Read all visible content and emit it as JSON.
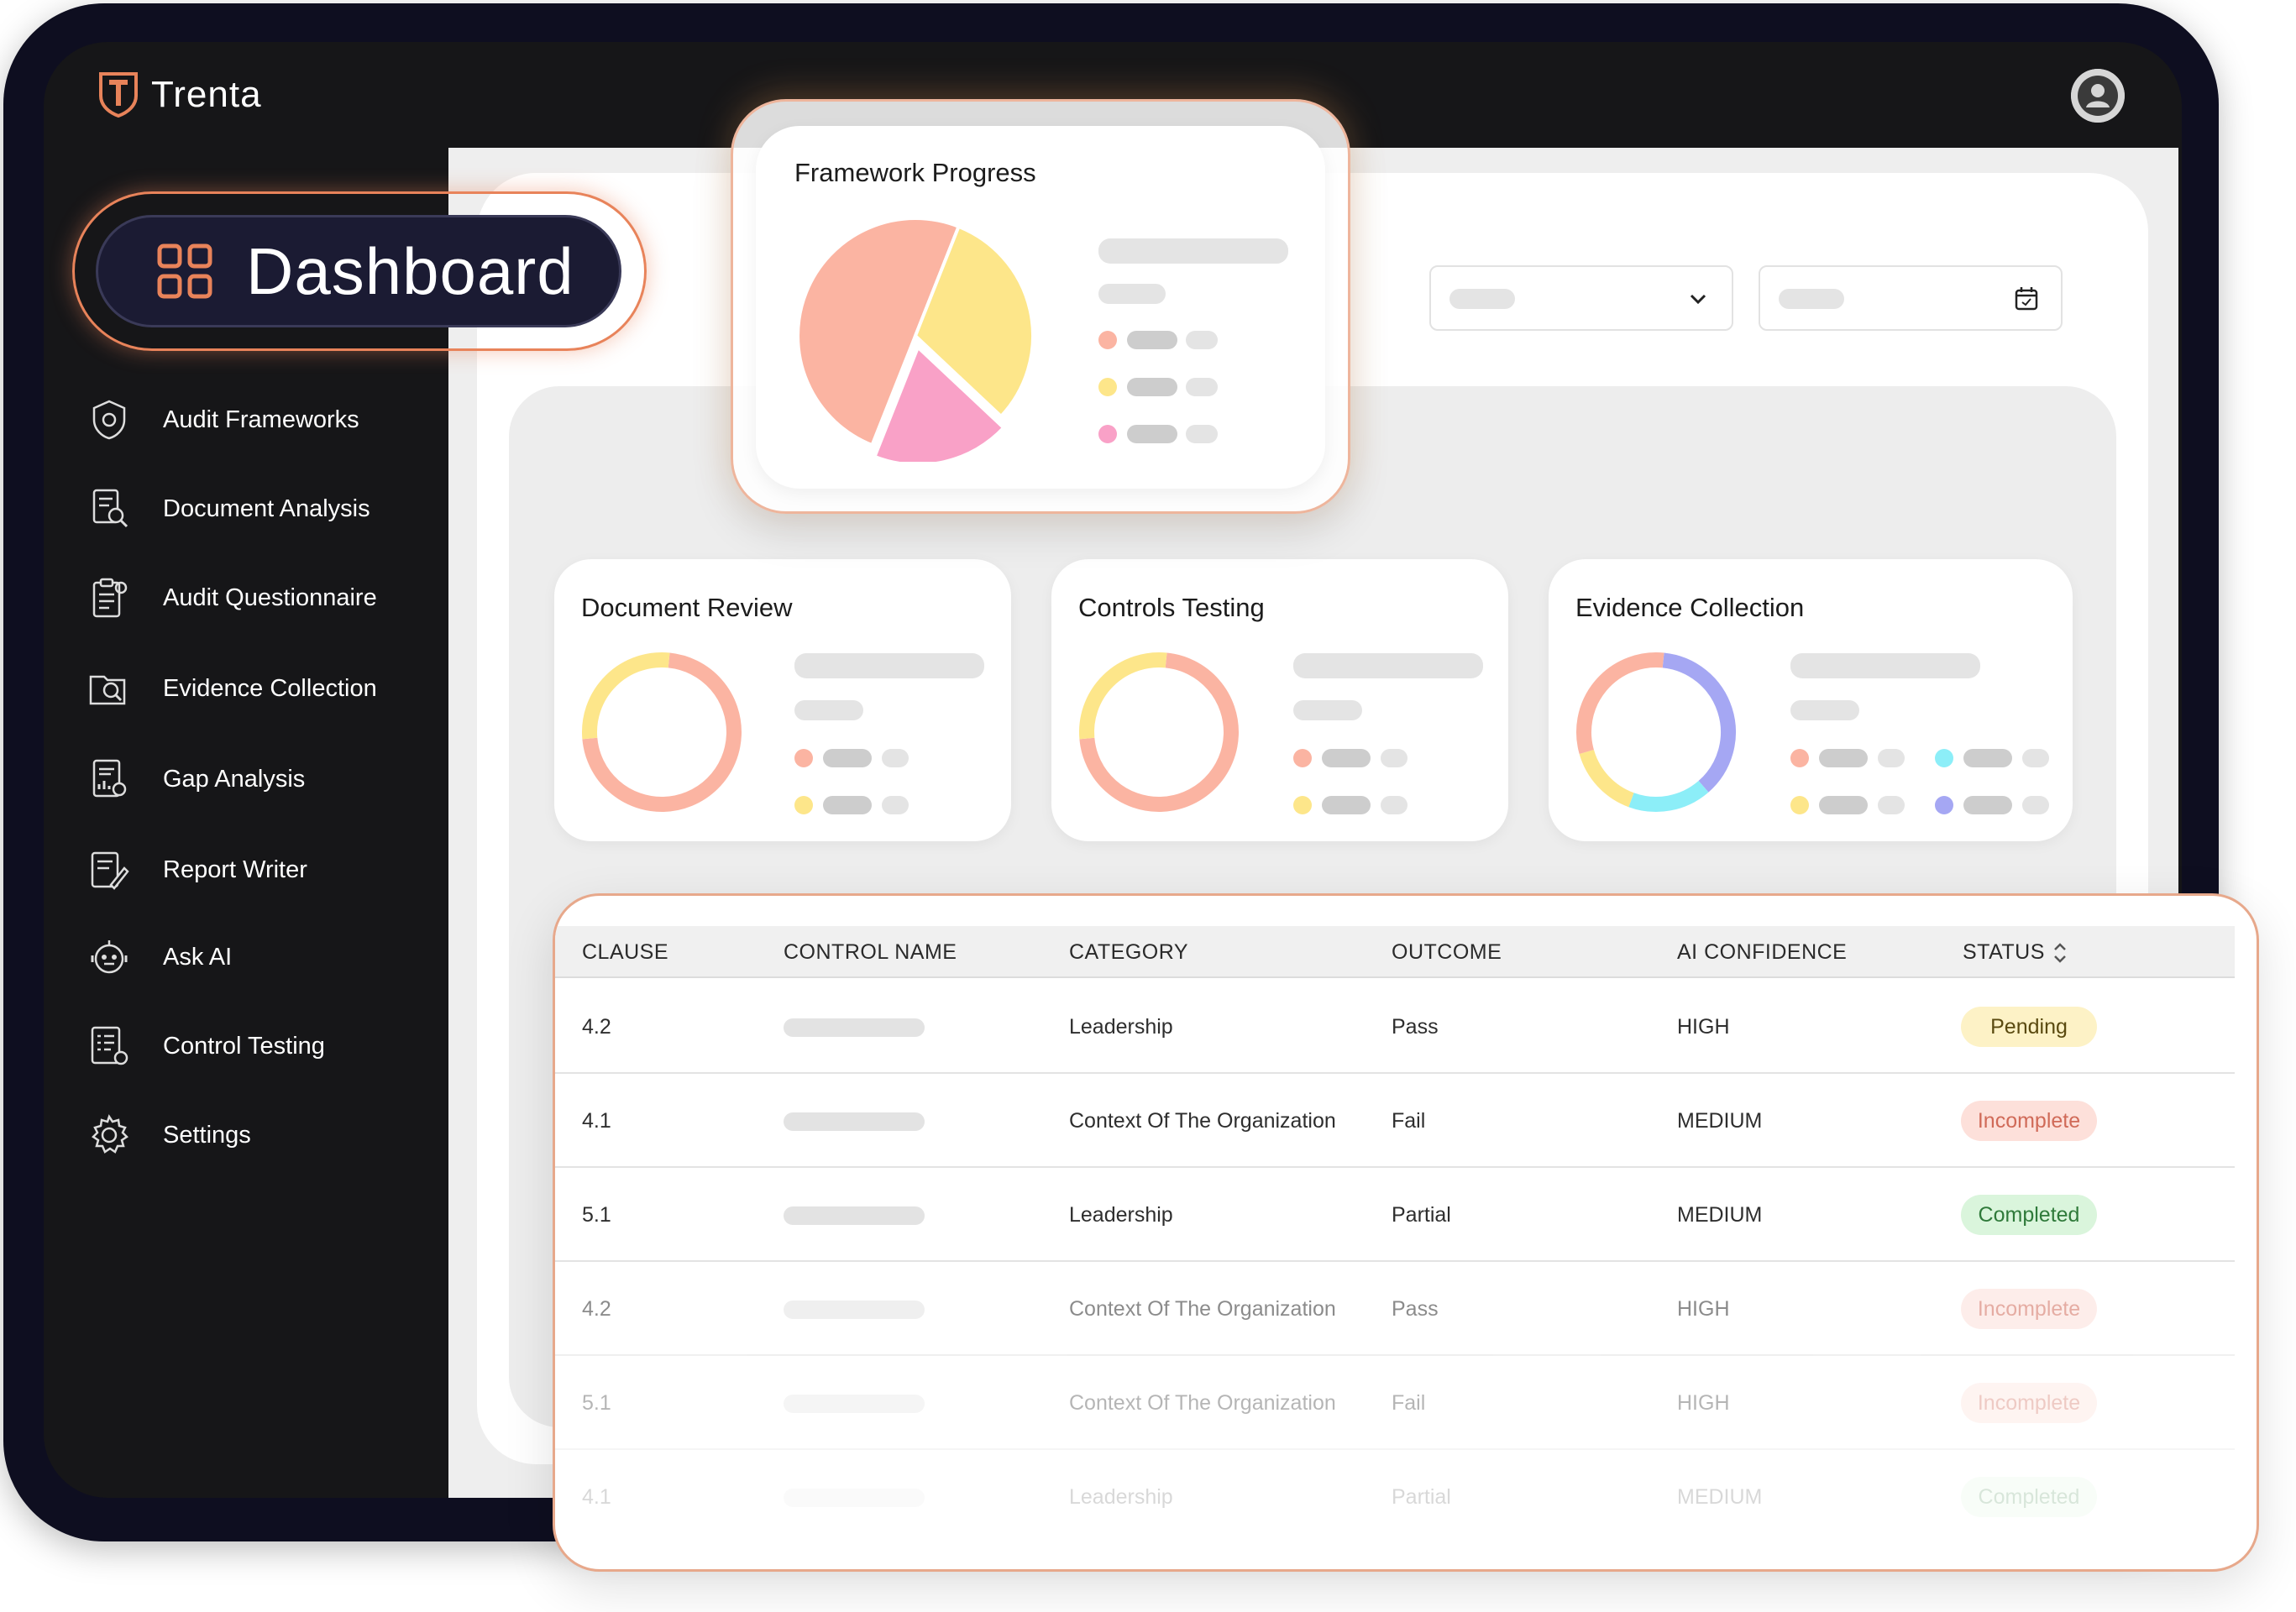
{
  "app": {
    "brand": "Trenta",
    "active_page": "Dashboard"
  },
  "sidebar": {
    "items": [
      {
        "label": "Audit Frameworks",
        "icon": "shield-gear-icon"
      },
      {
        "label": "Document Analysis",
        "icon": "document-search-icon"
      },
      {
        "label": "Audit Questionnaire",
        "icon": "clipboard-list-icon"
      },
      {
        "label": "Evidence Collection",
        "icon": "folder-search-icon"
      },
      {
        "label": "Gap Analysis",
        "icon": "document-chart-icon"
      },
      {
        "label": "Report Writer",
        "icon": "report-pen-icon"
      },
      {
        "label": "Ask AI",
        "icon": "robot-icon"
      },
      {
        "label": "Control Testing",
        "icon": "checklist-gear-icon"
      },
      {
        "label": "Settings",
        "icon": "gear-icon"
      }
    ]
  },
  "framework_progress": {
    "title": "Framework Progress"
  },
  "cards": [
    {
      "title": "Document Review"
    },
    {
      "title": "Controls Testing"
    },
    {
      "title": "Evidence Collection"
    }
  ],
  "colors": {
    "salmon": "#fbb4a2",
    "yellow": "#fde68a",
    "pink": "#f9a1c7",
    "cyan": "#8ceef8",
    "purple": "#a5a7f3",
    "accent": "#e8835a"
  },
  "chart_data": [
    {
      "type": "pie",
      "title": "Framework Progress",
      "slices": [
        {
          "color": "#fbb4a2",
          "value": 50
        },
        {
          "color": "#fde68a",
          "value": 31
        },
        {
          "color": "#f9a1c7",
          "value": 19
        }
      ]
    },
    {
      "type": "pie",
      "title": "Document Review",
      "slices": [
        {
          "color": "#fbb4a2",
          "value": 72
        },
        {
          "color": "#fde68a",
          "value": 28
        }
      ]
    },
    {
      "type": "pie",
      "title": "Controls Testing",
      "slices": [
        {
          "color": "#fbb4a2",
          "value": 72
        },
        {
          "color": "#fde68a",
          "value": 28
        }
      ]
    },
    {
      "type": "pie",
      "title": "Evidence Collection",
      "slices": [
        {
          "color": "#a5a7f3",
          "value": 37
        },
        {
          "color": "#8ceef8",
          "value": 17
        },
        {
          "color": "#fde68a",
          "value": 15
        },
        {
          "color": "#fbb4a2",
          "value": 31
        }
      ]
    }
  ],
  "table": {
    "headers": [
      "CLAUSE",
      "CONTROL NAME",
      "CATEGORY",
      "OUTCOME",
      "AI CONFIDENCE",
      "STATUS"
    ],
    "rows": [
      {
        "clause": "4.2",
        "category": "Leadership",
        "outcome": "Pass",
        "confidence": "HIGH",
        "status": "Pending"
      },
      {
        "clause": "4.1",
        "category": "Context Of The Organization",
        "outcome": "Fail",
        "confidence": "MEDIUM",
        "status": "Incomplete"
      },
      {
        "clause": "5.1",
        "category": "Leadership",
        "outcome": "Partial",
        "confidence": "MEDIUM",
        "status": "Completed"
      },
      {
        "clause": "4.2",
        "category": "Context Of The Organization",
        "outcome": "Pass",
        "confidence": "HIGH",
        "status": "Incomplete"
      },
      {
        "clause": "5.1",
        "category": "Context Of The Organization",
        "outcome": "Fail",
        "confidence": "HIGH",
        "status": "Incomplete"
      },
      {
        "clause": "4.1",
        "category": "Leadership",
        "outcome": "Partial",
        "confidence": "MEDIUM",
        "status": "Completed"
      }
    ]
  }
}
